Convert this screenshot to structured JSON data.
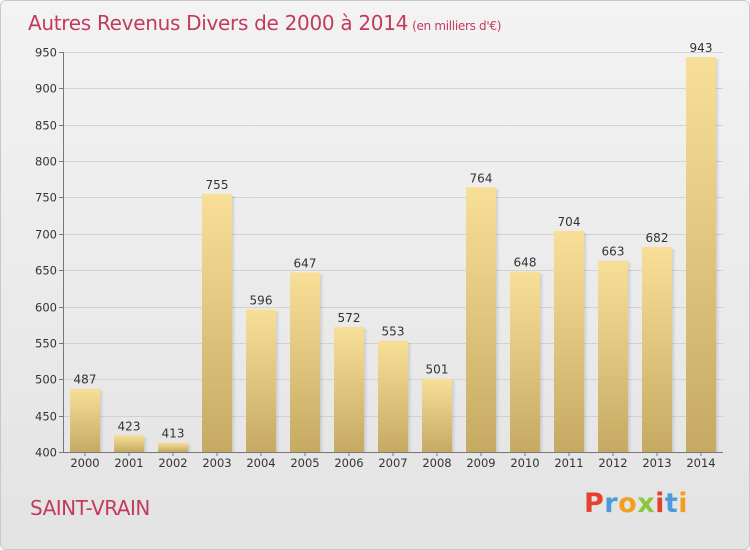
{
  "header": {
    "title": "Autres Revenus Divers de 2000 à 2014",
    "subtitle": "(en milliers d'€)"
  },
  "footer": {
    "place": "SAINT-VRAIN",
    "logo": "Proxiti"
  },
  "colors": {
    "title": "#c23a5e",
    "bar_top": "#f8df97",
    "bar_bottom": "#c6aa63",
    "logo_letters": [
      "#e5412e",
      "#4a9bd8",
      "#f2a01c",
      "#8cc63e",
      "#e5412e",
      "#4a9bd8",
      "#f2a01c"
    ]
  },
  "chart_data": {
    "type": "bar",
    "title": "Autres Revenus Divers de 2000 à 2014",
    "xlabel": "",
    "ylabel": "",
    "categories": [
      "2000",
      "2001",
      "2002",
      "2003",
      "2004",
      "2005",
      "2006",
      "2007",
      "2008",
      "2009",
      "2010",
      "2011",
      "2012",
      "2013",
      "2014"
    ],
    "values": [
      487,
      423,
      413,
      755,
      596,
      647,
      572,
      553,
      501,
      764,
      648,
      704,
      663,
      682,
      943
    ],
    "ylim": [
      400,
      950
    ],
    "yticks": [
      400,
      450,
      500,
      550,
      600,
      650,
      700,
      750,
      800,
      850,
      900,
      950
    ],
    "grid": true,
    "data_labels": true
  }
}
